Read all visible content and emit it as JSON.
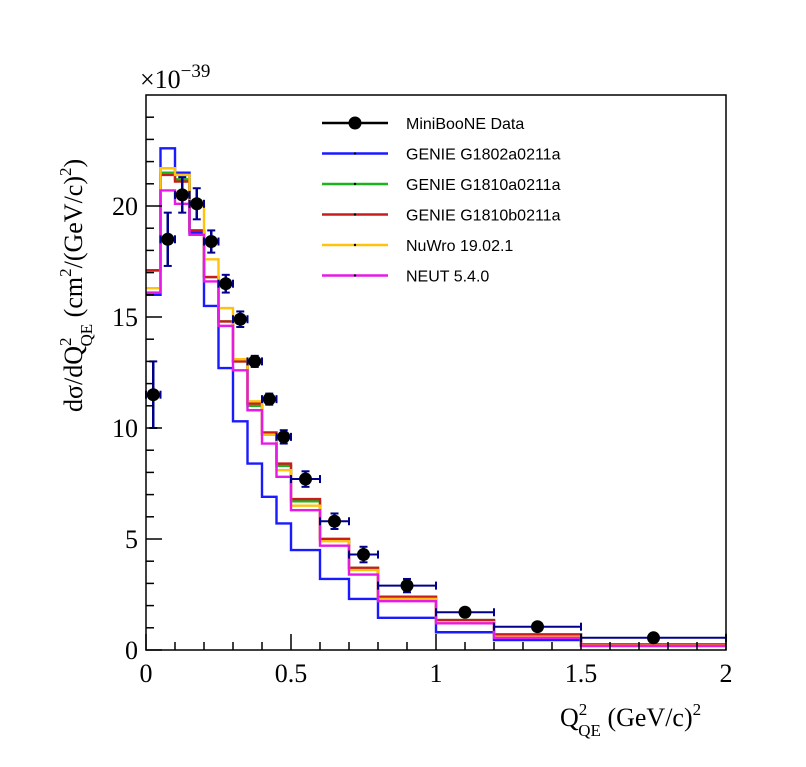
{
  "chart_data": {
    "type": "line",
    "title": "",
    "xlabel": {
      "main": "Q",
      "sup": "2",
      "sub": "QE",
      "units": "(GeV/c)",
      "units_sup": "2"
    },
    "ylabel": {
      "main": "dσ/dQ",
      "sup": "2",
      "sub": "QE",
      "units_pre": "(cm",
      "units_sup": "2",
      "units_mid": "/(GeV/c)",
      "units_sup2": "2",
      "units_post": ")"
    },
    "y_multiplier": {
      "base": "×10",
      "exp": "−39"
    },
    "xlim": [
      0,
      2
    ],
    "ylim": [
      0,
      25
    ],
    "x_ticks": [
      0,
      0.5,
      1,
      1.5,
      2
    ],
    "x_tick_labels": [
      "0",
      "0.5",
      "1",
      "1.5",
      "2"
    ],
    "y_ticks": [
      0,
      5,
      10,
      15,
      20
    ],
    "y_tick_labels": [
      "0",
      "5",
      "10",
      "15",
      "20"
    ],
    "bin_edges": [
      0,
      0.05,
      0.1,
      0.15,
      0.2,
      0.25,
      0.3,
      0.35,
      0.4,
      0.45,
      0.5,
      0.6,
      0.7,
      0.8,
      1.0,
      1.2,
      1.5,
      2.0
    ],
    "data": {
      "name": "MiniBooNE Data",
      "color": "#000000",
      "errbar_color": "#00008b",
      "x": [
        0.025,
        0.075,
        0.125,
        0.175,
        0.225,
        0.275,
        0.325,
        0.375,
        0.425,
        0.475,
        0.55,
        0.65,
        0.75,
        0.9,
        1.1,
        1.35,
        1.75
      ],
      "y": [
        11.5,
        18.5,
        20.5,
        20.1,
        18.4,
        16.5,
        14.9,
        13.0,
        11.3,
        9.6,
        7.7,
        5.8,
        4.3,
        2.9,
        1.7,
        1.05,
        0.55
      ],
      "yerr": [
        1.5,
        1.2,
        0.8,
        0.7,
        0.5,
        0.4,
        0.35,
        0.25,
        0.25,
        0.3,
        0.35,
        0.35,
        0.35,
        0.3,
        0.1,
        0.08,
        0.05
      ]
    },
    "series": [
      {
        "name": "GENIE G1802a0211a",
        "color": "#1a1aff",
        "values": [
          16.0,
          22.6,
          21.5,
          18.8,
          15.5,
          12.7,
          10.3,
          8.4,
          6.9,
          5.7,
          4.5,
          3.2,
          2.3,
          1.45,
          0.8,
          0.45,
          0.2
        ]
      },
      {
        "name": "GENIE G1810a0211a",
        "color": "#1db31d",
        "values": [
          17.1,
          21.5,
          21.2,
          18.9,
          16.8,
          14.8,
          13.0,
          11.0,
          9.7,
          8.3,
          6.7,
          5.0,
          3.7,
          2.4,
          1.35,
          0.7,
          0.25
        ]
      },
      {
        "name": "GENIE G1810b0211a",
        "color": "#c81d1d",
        "values": [
          17.1,
          21.4,
          21.1,
          18.9,
          16.8,
          14.8,
          13.0,
          11.1,
          9.8,
          8.4,
          6.8,
          5.0,
          3.7,
          2.4,
          1.35,
          0.7,
          0.25
        ]
      },
      {
        "name": "NuWro 19.02.1",
        "color": "#ffc20e",
        "values": [
          16.3,
          21.7,
          21.4,
          20.0,
          17.6,
          15.4,
          13.1,
          11.2,
          9.7,
          8.1,
          6.5,
          4.9,
          3.6,
          2.3,
          1.25,
          0.6,
          0.2
        ]
      },
      {
        "name": "NEUT 5.4.0",
        "color": "#e61ae6",
        "values": [
          16.1,
          20.7,
          20.1,
          18.7,
          16.6,
          14.6,
          12.6,
          10.8,
          9.3,
          7.8,
          6.3,
          4.7,
          3.4,
          2.2,
          1.2,
          0.55,
          0.18
        ]
      }
    ],
    "legend_position": "top-right",
    "grid": false
  }
}
